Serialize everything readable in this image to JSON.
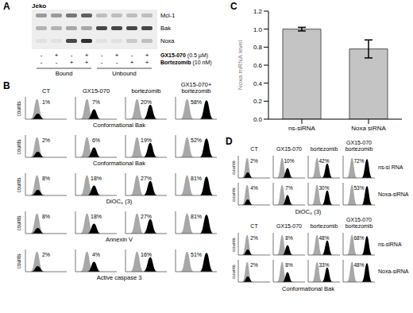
{
  "panels": [
    "A",
    "B",
    "C",
    "D"
  ],
  "blot": {
    "cell_line": "Jeko",
    "proteins": [
      "Mcl-1",
      "Bak",
      "Noxa"
    ],
    "treatments": [
      {
        "label": "GX15-070",
        "dose": "(0.5 µM)",
        "signs": [
          "-",
          "+",
          "-",
          "+",
          "-",
          "+",
          "-",
          "+"
        ]
      },
      {
        "label": "Bortezomib",
        "dose": "(10 nM)",
        "signs": [
          "-",
          "-",
          "+",
          "+",
          "-",
          "-",
          "+",
          "+"
        ]
      }
    ],
    "fractions": [
      "Bound",
      "Unbound"
    ]
  },
  "flow_B": {
    "columns": [
      "CT",
      "GX15-070",
      "bortezomib",
      "GX15-070+ bortezomib"
    ],
    "y_label": "counts",
    "rows": [
      {
        "label": "Conformational Bak",
        "values": [
          "1%",
          "7%",
          "20%",
          "58%"
        ]
      },
      {
        "label": "Conformational Bak",
        "values": [
          "2%",
          "6%",
          "19%",
          "52%"
        ]
      },
      {
        "label": "DiOC₆ (3)",
        "values": [
          "8%",
          "18%",
          "27%",
          "81%"
        ]
      },
      {
        "label": "Annexin V",
        "values": [
          "8%",
          "18%",
          "27%",
          "81%"
        ]
      },
      {
        "label": "Active caspase 3",
        "values": [
          "2%",
          "4%",
          "16%",
          "51%"
        ]
      }
    ]
  },
  "chart_data": {
    "type": "bar",
    "categories": [
      "ns-siRNA",
      "Noxa siRNA"
    ],
    "values": [
      1,
      0.78
    ],
    "errors": [
      0.02,
      0.1
    ],
    "color": "#c4c4c4",
    "ylabel": "Noxa mRNA level",
    "ylim": [
      0,
      1.2
    ],
    "yticks": [
      {
        "value": 0,
        "label": "0.0"
      },
      0.2,
      0.4,
      0.6,
      0.8,
      {
        "value": 1,
        "label": "1.0"
      },
      1.2
    ]
  },
  "flow_D": {
    "columns": [
      "CT",
      "GX15-070",
      "bortezomib",
      "GX15-070 bortezomib"
    ],
    "y_label": "counts",
    "blocks": [
      {
        "label": "DiOC₆ (3)",
        "rows": [
          {
            "label": "ns-si RNA",
            "values": [
              "2%",
              "10%",
              "42%",
              "72%"
            ]
          },
          {
            "label": "Noxa-siRNA",
            "values": [
              "4%",
              "7%",
              "30%",
              "53%"
            ]
          }
        ]
      },
      {
        "label": "Conformational Bak",
        "rows": [
          {
            "label": "ns-siRNA",
            "values": [
              "2%",
              "8%",
              "48%",
              "68%"
            ]
          },
          {
            "label": "Noxa-siRNA",
            "values": [
              "2%",
              "8%",
              "33%",
              "48%"
            ]
          }
        ]
      }
    ]
  }
}
